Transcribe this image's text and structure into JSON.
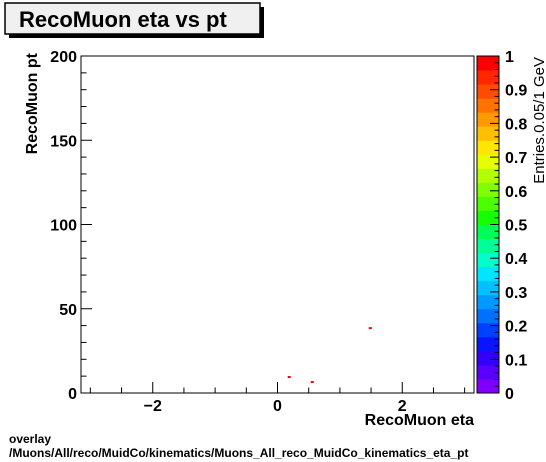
{
  "title": "RecoMuon eta vs pt",
  "footer": {
    "line1": "overlay",
    "line2": "/Muons/All/reco/MuidCo/kinematics/Muons_All_reco_MuidCo_kinematics_eta_pt"
  },
  "chart_data": {
    "type": "heatmap",
    "title": "RecoMuon eta vs pt",
    "xlabel": "RecoMuon eta",
    "ylabel": "RecoMuon pt",
    "zlabel": "Entries.0.05/1 GeV",
    "xlim": [
      -3.15,
      3.15
    ],
    "ylim": [
      0,
      200
    ],
    "zlim": [
      0,
      1
    ],
    "x_ticks": [
      -2,
      0,
      2
    ],
    "x_tick_labels": [
      "−2",
      "0",
      "2"
    ],
    "y_ticks": [
      0,
      50,
      100,
      150,
      200
    ],
    "y_tick_labels": [
      "0",
      "50",
      "100",
      "150",
      "200"
    ],
    "z_ticks": [
      0,
      0.1,
      0.2,
      0.3,
      0.4,
      0.5,
      0.6,
      0.7,
      0.8,
      0.9,
      1
    ],
    "z_tick_labels": [
      "0",
      "0.1",
      "0.2",
      "0.3",
      "0.4",
      "0.5",
      "0.6",
      "0.7",
      "0.8",
      "0.9",
      "1"
    ],
    "points": [
      {
        "x": 0.18,
        "y": 9.5,
        "value": 1
      },
      {
        "x": 0.55,
        "y": 6.5,
        "value": 1
      },
      {
        "x": 1.48,
        "y": 38.5,
        "value": 1
      }
    ],
    "palette": [
      "#7f00ff",
      "#5a00ff",
      "#3300ff",
      "#0a14ff",
      "#0040ff",
      "#0070ff",
      "#0099ff",
      "#00c0ff",
      "#00e5ff",
      "#00ffcc",
      "#00ff99",
      "#00ff55",
      "#14ff00",
      "#4cff00",
      "#80ff00",
      "#b2ff00",
      "#e5ff00",
      "#ffe500",
      "#ffbf00",
      "#ff9900",
      "#ff7300",
      "#ff4c00",
      "#ff2600",
      "#ff0000"
    ],
    "grid": false,
    "legend": "none"
  }
}
